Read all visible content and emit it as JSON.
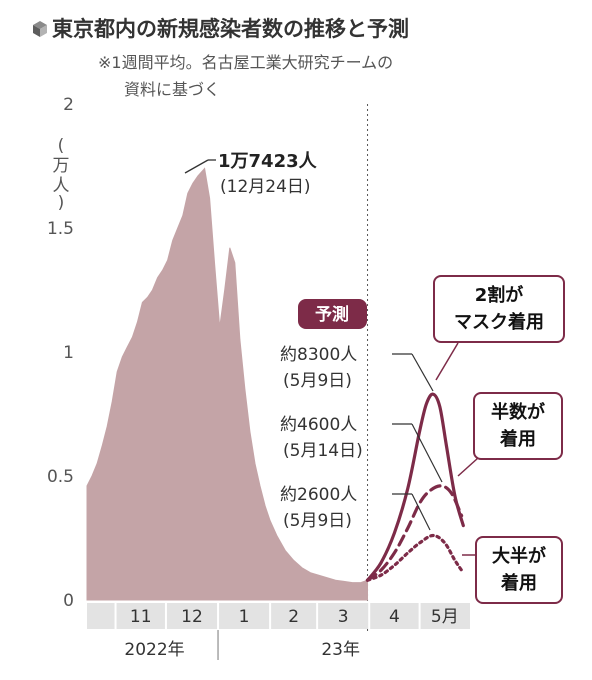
{
  "header": {
    "title": "東京都内の新規感染者数の推移と予測",
    "subtitle_line1": "※1週間平均。名古屋工業大研究チームの",
    "subtitle_line2": "資料に基づく"
  },
  "colors": {
    "observed_fill": "#c4a4a7",
    "forecast": "#7d2b48",
    "badge": "#7d2b48",
    "axis_band": "#e3e3e3"
  },
  "chart_data": {
    "type": "area",
    "title": "東京都内の新規感染者数の推移と予測",
    "y_unit": "(万人)",
    "ylim": [
      0,
      2
    ],
    "yticks": [
      {
        "value": 0,
        "label": "0"
      },
      {
        "value": 0.5,
        "label": "0.5"
      },
      {
        "value": 1,
        "label": "1"
      },
      {
        "value": 1.5,
        "label": "1.5"
      },
      {
        "value": 2,
        "label": "2"
      }
    ],
    "x_month_labels": [
      "11",
      "12",
      "1",
      "2",
      "3",
      "4",
      "5月"
    ],
    "year_labels": [
      "2022年",
      "23年"
    ],
    "observed": {
      "x": [
        "2022-10-15",
        "2022-10-18",
        "2022-10-21",
        "2022-10-24",
        "2022-10-27",
        "2022-10-30",
        "2022-11-02",
        "2022-11-05",
        "2022-11-08",
        "2022-11-11",
        "2022-11-14",
        "2022-11-17",
        "2022-11-20",
        "2022-11-23",
        "2022-11-26",
        "2022-11-29",
        "2022-12-02",
        "2022-12-05",
        "2022-12-08",
        "2022-12-11",
        "2022-12-14",
        "2022-12-17",
        "2022-12-20",
        "2022-12-24",
        "2022-12-27",
        "2022-12-30",
        "2023-01-02",
        "2023-01-05",
        "2023-01-08",
        "2023-01-11",
        "2023-01-14",
        "2023-01-17",
        "2023-01-20",
        "2023-01-23",
        "2023-01-26",
        "2023-01-29",
        "2023-02-01",
        "2023-02-05",
        "2023-02-10",
        "2023-02-15",
        "2023-02-20",
        "2023-02-25",
        "2023-03-02",
        "2023-03-07",
        "2023-03-12",
        "2023-03-17",
        "2023-03-22",
        "2023-03-27",
        "2023-03-31"
      ],
      "values": [
        0.46,
        0.5,
        0.55,
        0.62,
        0.7,
        0.8,
        0.92,
        0.98,
        1.02,
        1.06,
        1.12,
        1.2,
        1.22,
        1.25,
        1.3,
        1.33,
        1.37,
        1.45,
        1.5,
        1.55,
        1.64,
        1.68,
        1.71,
        1.74,
        1.62,
        1.35,
        1.1,
        1.25,
        1.42,
        1.36,
        1.05,
        0.85,
        0.68,
        0.55,
        0.46,
        0.38,
        0.32,
        0.26,
        0.2,
        0.16,
        0.13,
        0.11,
        0.1,
        0.09,
        0.08,
        0.075,
        0.07,
        0.07,
        0.08
      ]
    },
    "forecast_series": [
      {
        "name": "2割がマスク着用",
        "style": "solid",
        "x": [
          "2023-03-31",
          "2023-04-08",
          "2023-04-16",
          "2023-04-24",
          "2023-05-01",
          "2023-05-05",
          "2023-05-09",
          "2023-05-13",
          "2023-05-17",
          "2023-05-22",
          "2023-05-27"
        ],
        "values": [
          0.08,
          0.15,
          0.27,
          0.45,
          0.68,
          0.79,
          0.83,
          0.78,
          0.62,
          0.42,
          0.3
        ]
      },
      {
        "name": "半数が着用",
        "style": "dashed",
        "x": [
          "2023-03-31",
          "2023-04-08",
          "2023-04-16",
          "2023-04-24",
          "2023-05-01",
          "2023-05-07",
          "2023-05-14",
          "2023-05-20",
          "2023-05-26"
        ],
        "values": [
          0.08,
          0.12,
          0.19,
          0.29,
          0.39,
          0.44,
          0.46,
          0.43,
          0.34
        ]
      },
      {
        "name": "大半が着用",
        "style": "dotted",
        "x": [
          "2023-03-31",
          "2023-04-08",
          "2023-04-16",
          "2023-04-24",
          "2023-05-01",
          "2023-05-09",
          "2023-05-16",
          "2023-05-22",
          "2023-05-27"
        ],
        "values": [
          0.08,
          0.1,
          0.14,
          0.19,
          0.23,
          0.26,
          0.23,
          0.16,
          0.11
        ]
      }
    ],
    "annotations": {
      "peak_value": "1万7423人",
      "peak_date": "(12月24日)",
      "forecast_badge": "予測",
      "solid_value": "約8300人",
      "solid_date": "(5月9日)",
      "dashed_value": "約4600人",
      "dashed_date": "(5月14日)",
      "dotted_value": "約2600人",
      "dotted_date": "(5月9日)",
      "box_solid_line1": "2割が",
      "box_solid_line2": "マスク着用",
      "box_dashed_line1": "半数が",
      "box_dashed_line2": "着用",
      "box_dotted_line1": "大半が",
      "box_dotted_line2": "着用"
    }
  }
}
